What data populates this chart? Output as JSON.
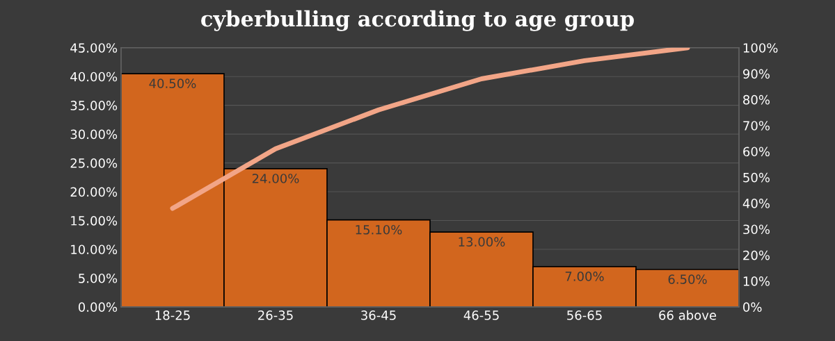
{
  "chart_data": {
    "type": "bar",
    "title": "cyberbulling according to age group",
    "categories": [
      "18-25",
      "26-35",
      "36-45",
      "46-55",
      "56-65",
      "66 above"
    ],
    "series": [
      {
        "color": "#d2661e",
        "values": [
          40.5,
          24.0,
          15.1,
          13.0,
          7.0,
          6.5
        ],
        "value_labels": [
          "40.50%",
          "24.00%",
          "15.10%",
          "13.00%",
          "7.00%",
          "6.50%"
        ]
      },
      {
        "type": "line",
        "axis": "y2",
        "color": "#f2a587",
        "values": [
          38,
          61,
          76,
          88,
          95,
          100
        ]
      }
    ],
    "ylim": [
      0,
      45
    ],
    "yticks": [
      {
        "value": 0,
        "label": "0.00%"
      },
      {
        "value": 5,
        "label": "5.00%"
      },
      {
        "value": 10,
        "label": "10.00%"
      },
      {
        "value": 15,
        "label": "15.00%"
      },
      {
        "value": 20,
        "label": "20.00%"
      },
      {
        "value": 25,
        "label": "25.00%"
      },
      {
        "value": 30,
        "label": "30.00%"
      },
      {
        "value": 35,
        "label": "35.00%"
      },
      {
        "value": 40,
        "label": "40.00%"
      },
      {
        "value": 45,
        "label": "45.00%"
      }
    ],
    "y2lim": [
      0,
      100
    ],
    "y2ticks": [
      {
        "value": 0,
        "label": "0%"
      },
      {
        "value": 10,
        "label": "10%"
      },
      {
        "value": 20,
        "label": "20%"
      },
      {
        "value": 30,
        "label": "30%"
      },
      {
        "value": 40,
        "label": "40%"
      },
      {
        "value": 50,
        "label": "50%"
      },
      {
        "value": 60,
        "label": "60%"
      },
      {
        "value": 70,
        "label": "70%"
      },
      {
        "value": 80,
        "label": "80%"
      },
      {
        "value": 90,
        "label": "90%"
      },
      {
        "value": 100,
        "label": "100%"
      }
    ],
    "grid": "y",
    "marker": "none",
    "line_style": "solid"
  }
}
